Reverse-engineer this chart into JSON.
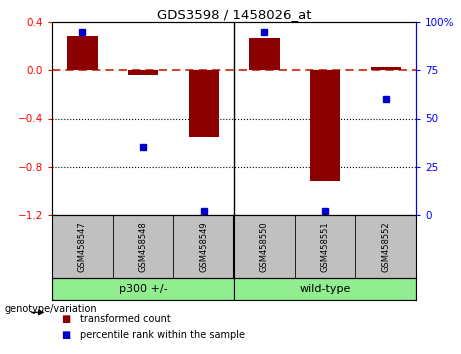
{
  "title": "GDS3598 / 1458026_at",
  "samples": [
    "GSM458547",
    "GSM458548",
    "GSM458549",
    "GSM458550",
    "GSM458551",
    "GSM458552"
  ],
  "red_bars": [
    0.28,
    -0.04,
    -0.55,
    0.27,
    -0.92,
    0.03
  ],
  "blue_dots": [
    95,
    35,
    2,
    95,
    2,
    60
  ],
  "ylim_left": [
    -1.2,
    0.4
  ],
  "ylim_right": [
    0,
    100
  ],
  "yticks_left": [
    -1.2,
    -0.8,
    -0.4,
    0.0,
    0.4
  ],
  "yticks_right": [
    0,
    25,
    50,
    75,
    100
  ],
  "ytick_labels_right": [
    "0",
    "25",
    "50",
    "75",
    "100%"
  ],
  "hline_y": 0.0,
  "dotted_lines": [
    -0.4,
    -0.8
  ],
  "groups": [
    {
      "label": "p300 +/-",
      "indices": [
        0,
        1,
        2
      ]
    },
    {
      "label": "wild-type",
      "indices": [
        3,
        4,
        5
      ]
    }
  ],
  "group_color": "#90EE90",
  "bar_color": "#8B0000",
  "dot_color": "#0000CD",
  "legend_items": [
    {
      "label": "transformed count",
      "color": "#8B0000"
    },
    {
      "label": "percentile rank within the sample",
      "color": "#0000CD"
    }
  ],
  "sample_bg_color": "#C0C0C0",
  "genotype_label": "genotype/variation",
  "group_boundary": 2.5
}
